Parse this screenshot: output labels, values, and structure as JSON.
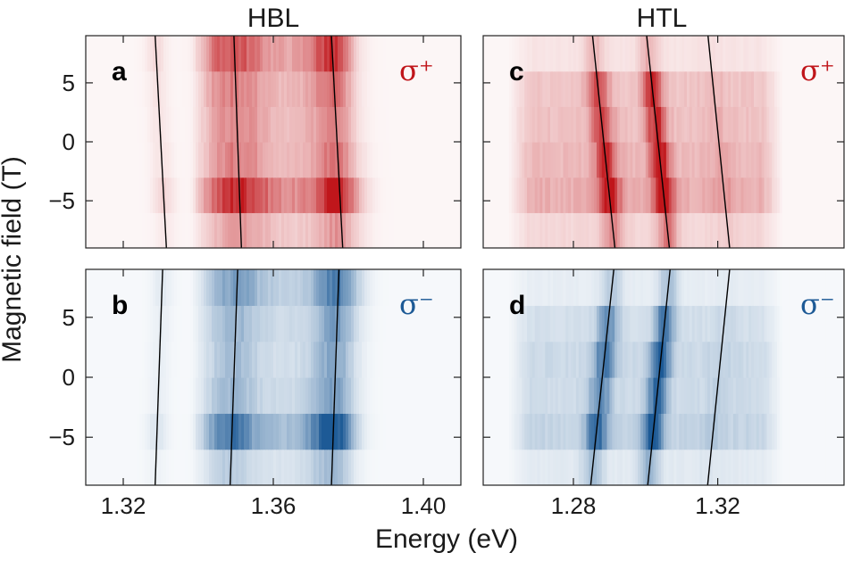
{
  "columns": {
    "left_title": "HBL",
    "right_title": "HTL"
  },
  "axes": {
    "xlabel": "Energy (eV)",
    "ylabel": "Magnetic field (T)"
  },
  "colors": {
    "sigma_plus": "#c0161b",
    "sigma_minus": "#1d5a96",
    "line": "#000000"
  },
  "chart_data": [
    {
      "type": "heatmap",
      "panel": "a",
      "column": "HBL",
      "polarization": "σ⁺",
      "colormap": "reds",
      "xlim": [
        1.31,
        1.41
      ],
      "ylim": [
        -9,
        9
      ],
      "xticks": [
        1.32,
        1.36,
        1.4
      ],
      "xtick_labels": [
        "1.32",
        "1.36",
        "1.40"
      ],
      "yticks": [
        -5,
        0,
        5
      ],
      "ytick_labels": [
        "−5",
        "0",
        "5"
      ],
      "field_rows": [
        -9,
        -6,
        -3,
        0,
        3,
        6,
        9
      ],
      "peaks": [
        {
          "energy": 1.332,
          "width": 0.002,
          "amp": 0.15
        },
        {
          "energy": 1.349,
          "width": 0.005,
          "amp": 0.5
        },
        {
          "energy": 1.376,
          "width": 0.004,
          "amp": 0.7
        }
      ],
      "background": {
        "low": 1.338,
        "high": 1.382,
        "amp": 0.45
      },
      "row_gain": [
        0.4,
        0.95,
        0.55,
        0.5,
        0.55,
        0.75,
        1.0
      ],
      "lines": [
        {
          "x_at_ymax": 1.3285,
          "x_at_ymin": 1.3315
        },
        {
          "x_at_ymax": 1.3495,
          "x_at_ymin": 1.3515
        },
        {
          "x_at_ymax": 1.3755,
          "x_at_ymin": 1.3785
        }
      ]
    },
    {
      "type": "heatmap",
      "panel": "b",
      "column": "HBL",
      "polarization": "σ⁻",
      "colormap": "blues",
      "xlim": [
        1.31,
        1.41
      ],
      "ylim": [
        -9,
        9
      ],
      "xticks": [
        1.32,
        1.36,
        1.4
      ],
      "xtick_labels": [
        "1.32",
        "1.36",
        "1.40"
      ],
      "yticks": [
        -5,
        0,
        5
      ],
      "ytick_labels": [
        "−5",
        "0",
        "5"
      ],
      "field_rows": [
        -9,
        -6,
        -3,
        0,
        3,
        6,
        9
      ],
      "peaks": [
        {
          "energy": 1.33,
          "width": 0.002,
          "amp": 0.12
        },
        {
          "energy": 1.35,
          "width": 0.004,
          "amp": 0.45
        },
        {
          "energy": 1.376,
          "width": 0.004,
          "amp": 0.8
        }
      ],
      "background": {
        "low": 1.338,
        "high": 1.382,
        "amp": 0.35
      },
      "row_gain": [
        0.35,
        1.0,
        0.5,
        0.45,
        0.5,
        0.7,
        0.85
      ],
      "lines": [
        {
          "x_at_ymax": 1.3305,
          "x_at_ymin": 1.3285
        },
        {
          "x_at_ymax": 1.3505,
          "x_at_ymin": 1.3485
        },
        {
          "x_at_ymax": 1.3775,
          "x_at_ymin": 1.3755
        }
      ]
    },
    {
      "type": "heatmap",
      "panel": "c",
      "column": "HTL",
      "polarization": "σ⁺",
      "colormap": "reds",
      "xlim": [
        1.255,
        1.355
      ],
      "ylim": [
        -9,
        9
      ],
      "xticks": [
        1.28,
        1.32
      ],
      "xtick_labels": [
        "1.28",
        "1.32"
      ],
      "yticks": [
        -5,
        0,
        5
      ],
      "ytick_labels": [
        "−5",
        "0",
        "5"
      ],
      "field_rows": [
        -9,
        -6,
        -3,
        0,
        3,
        6,
        9
      ],
      "peaks": [
        {
          "energy": 1.289,
          "width": 0.002,
          "amp": 0.75
        },
        {
          "energy": 1.306,
          "width": 0.0018,
          "amp": 0.95
        },
        {
          "energy": 1.32,
          "width": 0.002,
          "amp": 0.1
        }
      ],
      "background": {
        "low": 1.262,
        "high": 1.338,
        "amp": 0.3
      },
      "row_gain": [
        0.45,
        1.0,
        0.85,
        0.75,
        0.7,
        0.25,
        0.15
      ],
      "lines": [
        {
          "x_at_ymax": 1.2853,
          "x_at_ymin": 1.2915
        },
        {
          "x_at_ymax": 1.3003,
          "x_at_ymin": 1.3066
        },
        {
          "x_at_ymax": 1.3173,
          "x_at_ymin": 1.3233
        }
      ]
    },
    {
      "type": "heatmap",
      "panel": "d",
      "column": "HTL",
      "polarization": "σ⁻",
      "colormap": "blues",
      "xlim": [
        1.255,
        1.355
      ],
      "ylim": [
        -9,
        9
      ],
      "xticks": [
        1.28,
        1.32
      ],
      "xtick_labels": [
        "1.28",
        "1.32"
      ],
      "yticks": [
        -5,
        0,
        5
      ],
      "ytick_labels": [
        "−5",
        "0",
        "5"
      ],
      "field_rows": [
        -9,
        -6,
        -3,
        0,
        3,
        6,
        9
      ],
      "peaks": [
        {
          "energy": 1.287,
          "width": 0.002,
          "amp": 0.7
        },
        {
          "energy": 1.303,
          "width": 0.0018,
          "amp": 0.95
        },
        {
          "energy": 1.32,
          "width": 0.002,
          "amp": 0.08
        }
      ],
      "background": {
        "low": 1.262,
        "high": 1.338,
        "amp": 0.22
      },
      "row_gain": [
        0.4,
        1.0,
        0.8,
        0.85,
        0.7,
        0.3,
        0.15
      ],
      "lines": [
        {
          "x_at_ymax": 1.2912,
          "x_at_ymin": 1.2848
        },
        {
          "x_at_ymax": 1.3068,
          "x_at_ymin": 1.3006
        },
        {
          "x_at_ymax": 1.3233,
          "x_at_ymin": 1.3172
        }
      ]
    }
  ]
}
